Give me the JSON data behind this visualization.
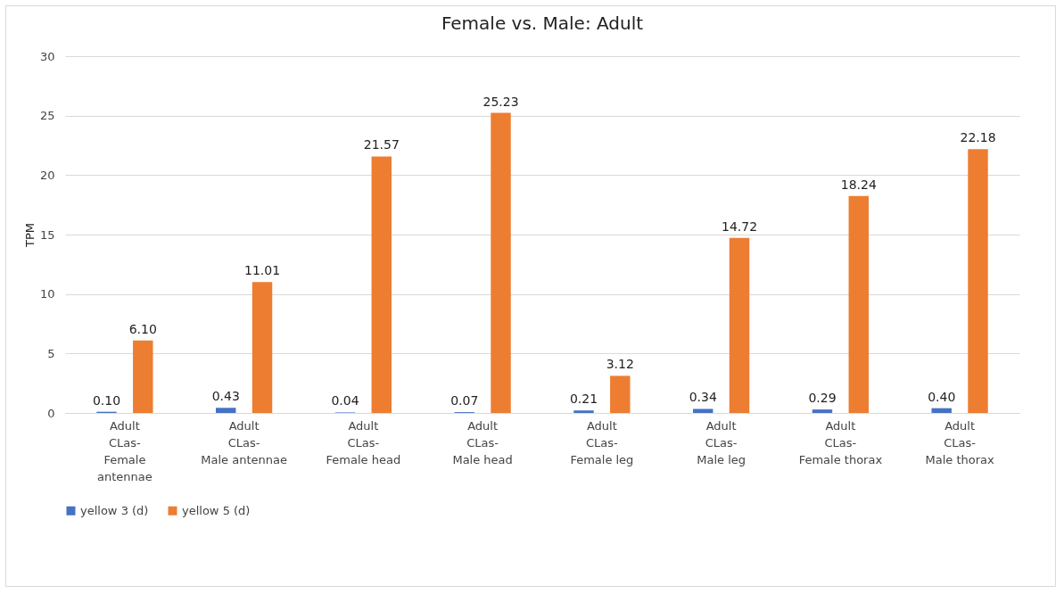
{
  "chart_data": {
    "type": "bar",
    "title": "Female vs. Male: Adult",
    "ylabel": "TPM",
    "categories": [
      "Adult CLas-Female antennae",
      "Adult CLas-Male antennae",
      "Adult CLas-Female head",
      "Adult CLas-Male head",
      "Adult CLas-Female leg",
      "Adult CLas-Male leg",
      "Adult CLas-Female thorax",
      "Adult CLas-Male thorax"
    ],
    "series": [
      {
        "name": "yellow 3 (d)",
        "color": "#4472c4",
        "values": [
          0.1,
          0.43,
          0.04,
          0.07,
          0.21,
          0.34,
          0.29,
          0.4
        ],
        "value_labels": [
          "0.10",
          "0.43",
          "0.04",
          "0.07",
          "0.21",
          "0.34",
          "0.29",
          "0.40"
        ]
      },
      {
        "name": "yellow 5 (d)",
        "color": "#ed7d31",
        "values": [
          6.1,
          11.01,
          21.57,
          25.23,
          3.12,
          14.72,
          18.24,
          22.18
        ],
        "value_labels": [
          "6.10",
          "11.01",
          "21.57",
          "25.23",
          "3.12",
          "14.72",
          "18.24",
          "22.18"
        ]
      }
    ],
    "ylim": [
      0,
      30
    ],
    "yticks": [
      0,
      5,
      10,
      15,
      20,
      25,
      30
    ],
    "grid": "y",
    "legend": "bottom"
  }
}
